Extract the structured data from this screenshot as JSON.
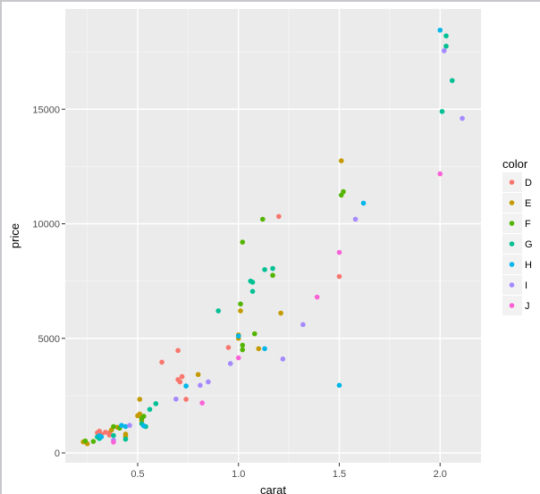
{
  "chart_data": {
    "type": "scatter",
    "title": "",
    "xlabel": "carat",
    "ylabel": "price",
    "xlim": [
      0.15,
      2.2
    ],
    "ylim": [
      -450,
      18900
    ],
    "x_ticks": [
      0.5,
      1.0,
      1.5,
      2.0
    ],
    "x_tick_labels": [
      "0.5",
      "1.0",
      "1.5",
      "2.0"
    ],
    "y_ticks": [
      0,
      5000,
      10000,
      15000
    ],
    "y_tick_labels": [
      "0",
      "5000",
      "10000",
      "15000"
    ],
    "grid": true,
    "legend": {
      "title": "color",
      "position": "right",
      "entries": [
        {
          "label": "D",
          "color": "#F8766D"
        },
        {
          "label": "E",
          "color": "#C49A00"
        },
        {
          "label": "F",
          "color": "#53B400"
        },
        {
          "label": "G",
          "color": "#00C094"
        },
        {
          "label": "H",
          "color": "#00B6EB"
        },
        {
          "label": "I",
          "color": "#A58AFF"
        },
        {
          "label": "J",
          "color": "#FB61D7"
        }
      ]
    },
    "series": [
      {
        "name": "D",
        "color": "#F8766D",
        "points": [
          [
            0.3,
            880
          ],
          [
            0.31,
            950
          ],
          [
            0.32,
            820
          ],
          [
            0.34,
            900
          ],
          [
            0.36,
            780
          ],
          [
            0.36,
            880
          ],
          [
            0.62,
            3960
          ],
          [
            0.7,
            4470
          ],
          [
            0.7,
            3200
          ],
          [
            0.71,
            3100
          ],
          [
            0.72,
            3330
          ],
          [
            0.74,
            2340
          ],
          [
            0.95,
            4600
          ],
          [
            1.2,
            10320
          ],
          [
            1.5,
            7700
          ]
        ]
      },
      {
        "name": "E",
        "color": "#C49A00",
        "points": [
          [
            0.23,
            480
          ],
          [
            0.25,
            400
          ],
          [
            0.37,
            1000
          ],
          [
            0.4,
            1120
          ],
          [
            0.44,
            820
          ],
          [
            0.44,
            720
          ],
          [
            0.51,
            2340
          ],
          [
            0.5,
            1620
          ],
          [
            0.51,
            1700
          ],
          [
            0.52,
            1400
          ],
          [
            0.8,
            3420
          ],
          [
            1.0,
            5000
          ],
          [
            1.0,
            5150
          ],
          [
            1.01,
            6200
          ],
          [
            1.1,
            4550
          ],
          [
            1.21,
            6100
          ],
          [
            1.51,
            12750
          ]
        ]
      },
      {
        "name": "F",
        "color": "#53B400",
        "points": [
          [
            0.24,
            520
          ],
          [
            0.28,
            500
          ],
          [
            0.38,
            1150
          ],
          [
            0.41,
            1080
          ],
          [
            0.53,
            1600
          ],
          [
            0.52,
            1500
          ],
          [
            1.01,
            6500
          ],
          [
            1.02,
            4700
          ],
          [
            1.02,
            4500
          ],
          [
            1.02,
            9200
          ],
          [
            1.08,
            5200
          ],
          [
            1.12,
            10200
          ],
          [
            1.17,
            7750
          ],
          [
            1.51,
            11250
          ],
          [
            1.52,
            11400
          ]
        ]
      },
      {
        "name": "G",
        "color": "#00C094",
        "points": [
          [
            0.3,
            700
          ],
          [
            0.31,
            630
          ],
          [
            0.38,
            760
          ],
          [
            0.44,
            600
          ],
          [
            0.52,
            1280
          ],
          [
            0.54,
            1150
          ],
          [
            0.59,
            2150
          ],
          [
            0.56,
            1900
          ],
          [
            0.9,
            6200
          ],
          [
            1.06,
            7500
          ],
          [
            1.07,
            7450
          ],
          [
            1.07,
            7050
          ],
          [
            1.13,
            8000
          ],
          [
            1.17,
            8050
          ],
          [
            2.01,
            14900
          ],
          [
            2.03,
            17750
          ],
          [
            2.03,
            18200
          ],
          [
            2.06,
            16250
          ]
        ]
      },
      {
        "name": "H",
        "color": "#00B6EB",
        "points": [
          [
            0.31,
            750
          ],
          [
            0.32,
            700
          ],
          [
            0.42,
            1200
          ],
          [
            0.44,
            1150
          ],
          [
            0.53,
            1180
          ],
          [
            0.74,
            2920
          ],
          [
            1.0,
            5100
          ],
          [
            1.13,
            4550
          ],
          [
            1.5,
            2950
          ],
          [
            1.62,
            10900
          ],
          [
            2.0,
            18450
          ]
        ]
      },
      {
        "name": "I",
        "color": "#A58AFF",
        "points": [
          [
            0.38,
            560
          ],
          [
            0.46,
            1200
          ],
          [
            0.69,
            2350
          ],
          [
            0.81,
            2950
          ],
          [
            0.85,
            3100
          ],
          [
            0.96,
            3900
          ],
          [
            1.22,
            4100
          ],
          [
            1.32,
            5600
          ],
          [
            1.58,
            10200
          ],
          [
            2.02,
            17550
          ],
          [
            2.11,
            14600
          ]
        ]
      },
      {
        "name": "J",
        "color": "#FB61D7",
        "points": [
          [
            0.38,
            470
          ],
          [
            0.82,
            2180
          ],
          [
            1.0,
            4150
          ],
          [
            1.39,
            6800
          ],
          [
            1.5,
            8750
          ],
          [
            2.0,
            12180
          ]
        ]
      }
    ]
  }
}
